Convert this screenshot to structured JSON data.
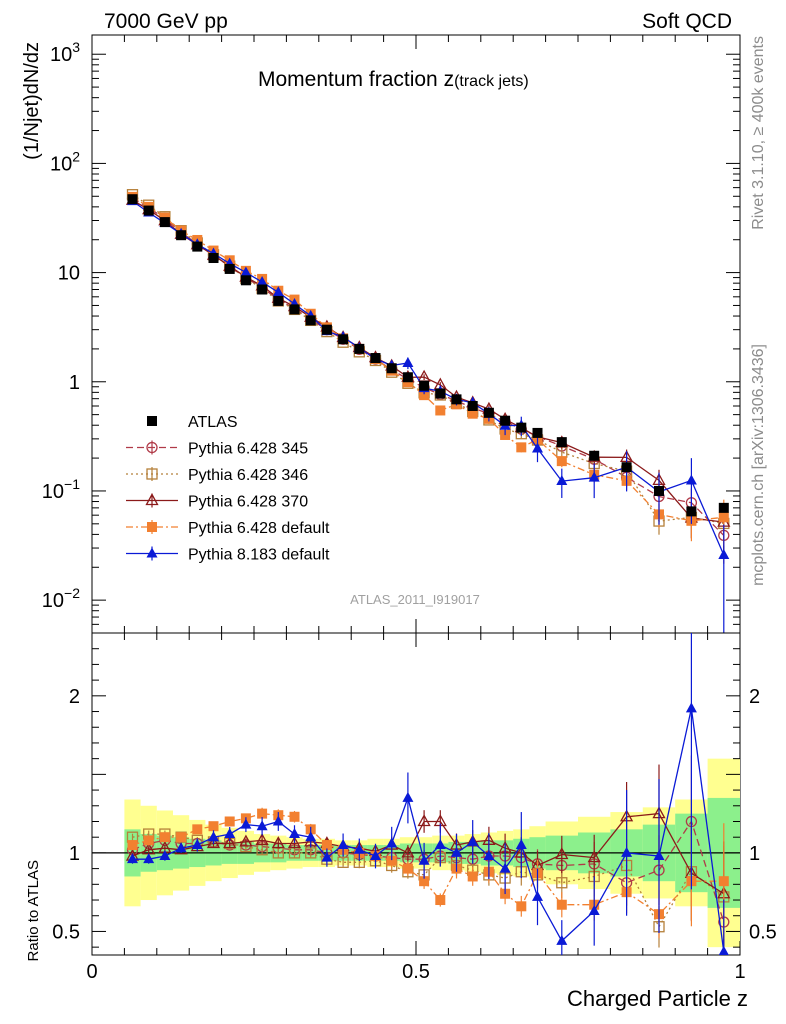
{
  "header": {
    "left": "7000 GeV pp",
    "right": "Soft QCD"
  },
  "side_labels": {
    "rivet": "Rivet 3.1.10, ≥ 400k events",
    "mcplots": "mcplots.cern.ch [arXiv:1306.3436]"
  },
  "colors": {
    "atlas": "#000000",
    "p345": "#b03a48",
    "p346": "#b5803a",
    "p370": "#8b1a1a",
    "p6def": "#f28030",
    "p8": "#0a1ad6",
    "band_inner": "#8cf08c",
    "band_outer": "#ffff90"
  },
  "chart_data": {
    "type": "line",
    "title_main": "Momentum fraction ",
    "title_var": "z",
    "title_sub": "(track jets)",
    "analysis_tag": "ATLAS_2011_I919017",
    "xlabel": "Charged Particle z",
    "ylabel_main": "(1/Njet)dN/dz",
    "ylabel_ratio": "Ratio to ATLAS",
    "xlim": [
      0,
      1.0
    ],
    "ylim_main": [
      0.005,
      1500
    ],
    "ylim_ratio": [
      0.35,
      2.4
    ],
    "main_ticks": [
      {
        "v": 1000,
        "base": "10",
        "sup": "3"
      },
      {
        "v": 100,
        "base": "10",
        "sup": "2"
      },
      {
        "v": 10,
        "base": "10",
        "sup": ""
      },
      {
        "v": 1,
        "base": "1",
        "sup": ""
      },
      {
        "v": 0.1,
        "base": "10",
        "sup": "−1"
      },
      {
        "v": 0.01,
        "base": "10",
        "sup": "−2"
      }
    ],
    "ratio_ticks": [
      {
        "v": 2,
        "label": "2"
      },
      {
        "v": 1,
        "label": "1"
      },
      {
        "v": 0.5,
        "label": "0.5"
      }
    ],
    "x_ticks": [
      {
        "v": 0,
        "label": "0"
      },
      {
        "v": 0.5,
        "label": "0.5"
      },
      {
        "v": 1,
        "label": "1"
      }
    ],
    "x": [
      0.0625,
      0.0875,
      0.1125,
      0.1375,
      0.1625,
      0.1875,
      0.2125,
      0.2375,
      0.2625,
      0.2875,
      0.3125,
      0.3375,
      0.3625,
      0.3875,
      0.4125,
      0.4375,
      0.4625,
      0.4875,
      0.5125,
      0.5375,
      0.5625,
      0.5875,
      0.6125,
      0.6375,
      0.6625,
      0.6875,
      0.725,
      0.775,
      0.825,
      0.875,
      0.925,
      0.975
    ],
    "x_halfwidth": [
      0.0125,
      0.0125,
      0.0125,
      0.0125,
      0.0125,
      0.0125,
      0.0125,
      0.0125,
      0.0125,
      0.0125,
      0.0125,
      0.0125,
      0.0125,
      0.0125,
      0.0125,
      0.0125,
      0.0125,
      0.0125,
      0.0125,
      0.0125,
      0.0125,
      0.0125,
      0.0125,
      0.0125,
      0.0125,
      0.0125,
      0.025,
      0.025,
      0.025,
      0.025,
      0.025,
      0.025
    ],
    "data": [
      47,
      37,
      29,
      22,
      17.3,
      13.6,
      10.8,
      8.5,
      7.0,
      5.5,
      4.6,
      3.65,
      3.0,
      2.45,
      2.0,
      1.65,
      1.33,
      1.1,
      0.92,
      0.78,
      0.69,
      0.6,
      0.52,
      0.44,
      0.38,
      0.34,
      0.28,
      0.21,
      0.165,
      0.1,
      0.065,
      0.07
    ],
    "band_inner": [
      0.15,
      0.12,
      0.11,
      0.1,
      0.09,
      0.08,
      0.07,
      0.07,
      0.06,
      0.06,
      0.05,
      0.05,
      0.05,
      0.05,
      0.05,
      0.05,
      0.05,
      0.06,
      0.06,
      0.06,
      0.07,
      0.07,
      0.08,
      0.08,
      0.09,
      0.1,
      0.11,
      0.13,
      0.15,
      0.18,
      0.25,
      0.35
    ],
    "band_outer": [
      0.34,
      0.3,
      0.27,
      0.24,
      0.21,
      0.18,
      0.16,
      0.14,
      0.12,
      0.11,
      0.1,
      0.09,
      0.09,
      0.08,
      0.08,
      0.09,
      0.09,
      0.1,
      0.1,
      0.11,
      0.11,
      0.12,
      0.13,
      0.14,
      0.15,
      0.17,
      0.2,
      0.23,
      0.26,
      0.29,
      0.34,
      0.6
    ],
    "series": [
      {
        "name": "Pythia 6.428 345",
        "key": "p345",
        "marker": "circle-open",
        "dash": "7 4",
        "ratio": [
          1.02,
          1.06,
          1.08,
          1.06,
          1.06,
          1.07,
          1.05,
          1.05,
          1.04,
          1.03,
          1.02,
          1.02,
          1.0,
          1.0,
          0.99,
          0.98,
          0.97,
          0.96,
          0.96,
          0.98,
          0.97,
          0.96,
          0.98,
          0.98,
          0.97,
          0.93,
          0.92,
          0.93,
          0.81,
          0.89,
          1.2,
          0.56
        ],
        "err": [
          0.02,
          0.02,
          0.02,
          0.02,
          0.02,
          0.02,
          0.02,
          0.02,
          0.03,
          0.03,
          0.03,
          0.03,
          0.03,
          0.03,
          0.04,
          0.04,
          0.05,
          0.05,
          0.06,
          0.06,
          0.07,
          0.07,
          0.08,
          0.09,
          0.1,
          0.1,
          0.12,
          0.15,
          0.18,
          0.25,
          0.35,
          0.45
        ]
      },
      {
        "name": "Pythia 6.428 346",
        "key": "p346",
        "marker": "square-open",
        "dash": "2 3",
        "ratio": [
          1.1,
          1.12,
          1.12,
          1.1,
          1.08,
          1.07,
          1.06,
          1.04,
          1.02,
          1.0,
          1.0,
          1.0,
          0.96,
          0.94,
          0.94,
          0.95,
          0.92,
          0.88,
          0.86,
          0.97,
          0.92,
          0.89,
          0.86,
          0.84,
          0.88,
          0.86,
          0.81,
          0.85,
          0.92,
          0.53,
          0.88,
          0.72
        ],
        "err": [
          0.02,
          0.02,
          0.02,
          0.02,
          0.02,
          0.02,
          0.02,
          0.02,
          0.03,
          0.03,
          0.03,
          0.03,
          0.03,
          0.03,
          0.04,
          0.04,
          0.05,
          0.05,
          0.06,
          0.06,
          0.07,
          0.07,
          0.08,
          0.09,
          0.1,
          0.1,
          0.12,
          0.15,
          0.18,
          0.25,
          0.35,
          0.45
        ]
      },
      {
        "name": "Pythia 6.428 370",
        "key": "p370",
        "marker": "triangle-open",
        "dash": "",
        "ratio": [
          0.98,
          1.02,
          1.03,
          1.02,
          1.04,
          1.06,
          1.06,
          1.07,
          1.08,
          1.06,
          1.06,
          1.07,
          1.06,
          1.04,
          1.03,
          1.01,
          1.05,
          1.0,
          1.2,
          1.2,
          1.05,
          1.07,
          1.08,
          1.03,
          1.0,
          0.92,
          0.99,
          0.97,
          1.23,
          1.25,
          0.87,
          0.74
        ],
        "err": [
          0.02,
          0.02,
          0.02,
          0.02,
          0.02,
          0.02,
          0.02,
          0.02,
          0.03,
          0.03,
          0.03,
          0.03,
          0.03,
          0.03,
          0.04,
          0.04,
          0.05,
          0.05,
          0.06,
          0.06,
          0.07,
          0.07,
          0.08,
          0.09,
          0.1,
          0.1,
          0.12,
          0.15,
          0.18,
          0.25,
          0.35,
          0.45
        ]
      },
      {
        "name": "Pythia 6.428 default",
        "key": "p6def",
        "marker": "square-filled",
        "dash": "7 3 2 3",
        "ratio": [
          1.05,
          1.08,
          1.1,
          1.1,
          1.15,
          1.17,
          1.2,
          1.22,
          1.25,
          1.24,
          1.23,
          1.15,
          1.05,
          1.02,
          1.0,
          0.98,
          0.95,
          0.9,
          0.82,
          0.7,
          0.9,
          0.85,
          0.88,
          0.74,
          0.66,
          0.87,
          0.67,
          0.67,
          0.75,
          0.61,
          0.82,
          0.82
        ],
        "err": [
          0.02,
          0.02,
          0.02,
          0.02,
          0.02,
          0.02,
          0.02,
          0.02,
          0.03,
          0.03,
          0.03,
          0.03,
          0.03,
          0.03,
          0.04,
          0.04,
          0.05,
          0.05,
          0.06,
          0.06,
          0.07,
          0.07,
          0.08,
          0.09,
          0.1,
          0.1,
          0.12,
          0.15,
          0.18,
          0.25,
          0.35,
          0.45
        ]
      },
      {
        "name": "Pythia 8.183 default",
        "key": "p8",
        "marker": "triangle-filled",
        "dash": "",
        "ratio": [
          0.96,
          0.96,
          0.98,
          1.03,
          1.05,
          1.1,
          1.12,
          1.18,
          1.17,
          1.2,
          1.12,
          1.1,
          0.97,
          1.05,
          1.02,
          0.98,
          1.06,
          1.35,
          0.95,
          1.05,
          1.0,
          1.07,
          0.98,
          0.9,
          1.05,
          0.72,
          0.44,
          0.63,
          1.0,
          0.98,
          1.92,
          0.37
        ],
        "err": [
          0.03,
          0.03,
          0.03,
          0.03,
          0.04,
          0.04,
          0.04,
          0.04,
          0.05,
          0.05,
          0.05,
          0.06,
          0.06,
          0.07,
          0.07,
          0.08,
          0.1,
          0.12,
          0.12,
          0.13,
          0.12,
          0.13,
          0.15,
          0.18,
          0.2,
          0.25,
          0.3,
          0.35,
          0.4,
          0.5,
          0.6,
          0.9
        ]
      }
    ]
  }
}
